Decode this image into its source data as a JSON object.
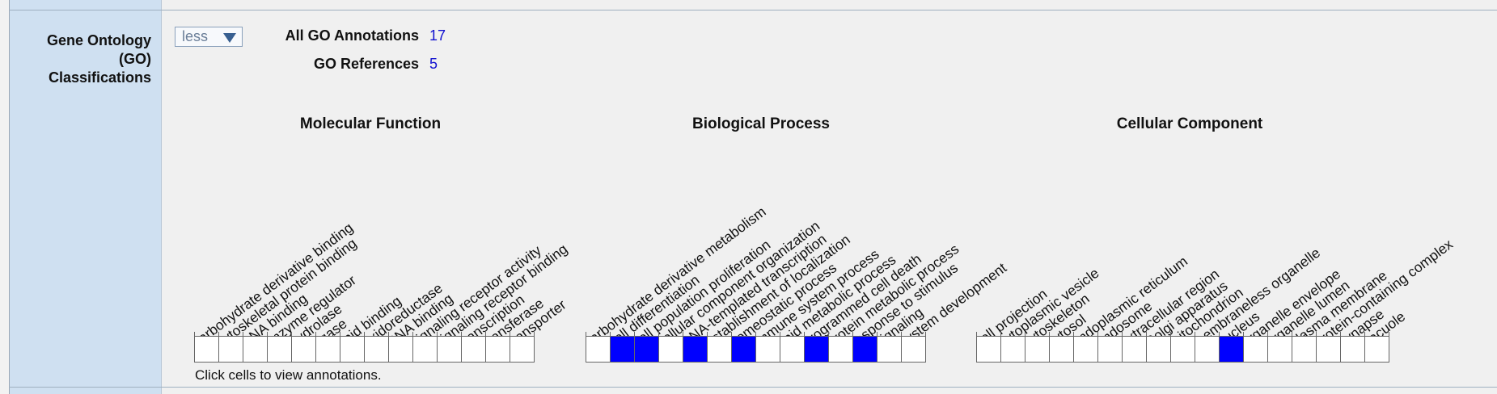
{
  "section": {
    "label_line1": "Gene Ontology",
    "label_line2": "(GO)",
    "label_line3": "Classifications"
  },
  "toggle": {
    "selected": "less"
  },
  "summary": {
    "all_annotations_label": "All GO Annotations",
    "all_annotations_value": "17",
    "references_label": "GO References",
    "references_value": "5"
  },
  "categories": [
    {
      "title": "Molecular Function",
      "terms": [
        "carbohydrate derivative binding",
        "cytoskeletal protein binding",
        "DNA binding",
        "enzyme regulator",
        "hydrolase",
        "ligase",
        "lipid binding",
        "oxidoreductase",
        "RNA binding",
        "signaling receptor activity",
        "signaling receptor binding",
        "transcription",
        "transferase",
        "transporter"
      ],
      "annotated": [
        false,
        false,
        false,
        false,
        false,
        false,
        false,
        false,
        false,
        false,
        false,
        false,
        false,
        false
      ]
    },
    {
      "title": "Biological Process",
      "terms": [
        "carbohydrate derivative metabolism",
        "cell differentiation",
        "cell population proliferation",
        "cellular component organization",
        "DNA-templated transcription",
        "establishment of localization",
        "homeostatic process",
        "immune system process",
        "lipid metabolic process",
        "programmed cell death",
        "protein metabolic process",
        "response to stimulus",
        "signaling",
        "system development"
      ],
      "annotated": [
        false,
        true,
        true,
        false,
        true,
        false,
        true,
        false,
        false,
        true,
        false,
        true,
        false,
        false
      ]
    },
    {
      "title": "Cellular Component",
      "terms": [
        "cell projection",
        "cytoplasmic vesicle",
        "cytoskeleton",
        "cytosol",
        "endoplasmic reticulum",
        "endosome",
        "extracellular region",
        "Golgi apparatus",
        "mitochondrion",
        "membraneless organelle",
        "nucleus",
        "organelle envelope",
        "organelle lumen",
        "plasma membrane",
        "protein-containing complex",
        "synapse",
        "vacuole"
      ],
      "annotated": [
        false,
        false,
        false,
        false,
        false,
        false,
        false,
        false,
        false,
        false,
        true,
        false,
        false,
        false,
        false,
        false,
        false
      ]
    }
  ],
  "hint": "Click cells to view annotations.",
  "colors": {
    "annotated": "#0000ff",
    "empty": "#ffffff",
    "link": "#1010d0"
  }
}
